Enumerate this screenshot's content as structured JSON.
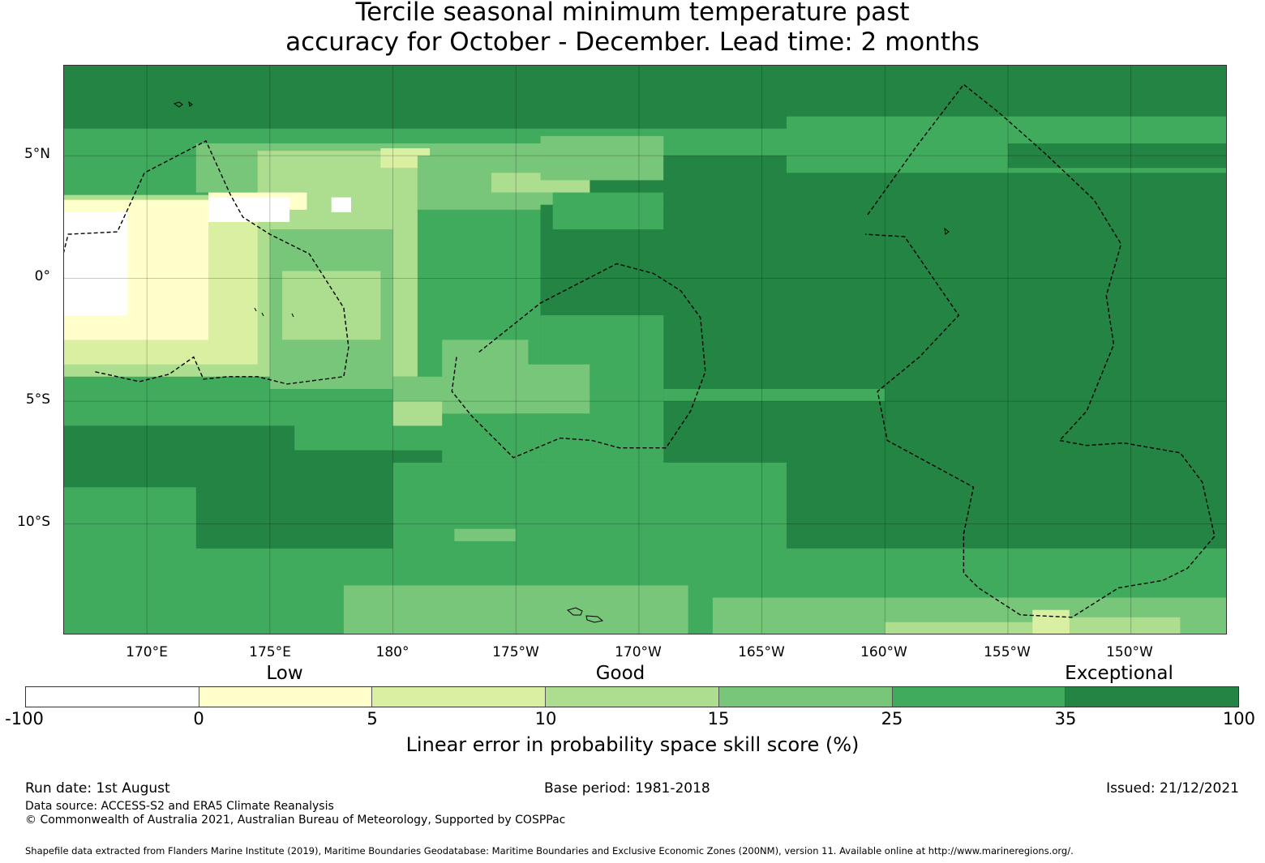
{
  "title": {
    "line1": "Tercile seasonal minimum temperature past",
    "line2": "accuracy for October - December. Lead time: 2 months"
  },
  "map": {
    "lat_labels": [
      "5°N",
      "0°",
      "5°S",
      "10°S"
    ],
    "lon_labels": [
      "170°E",
      "175°E",
      "180°",
      "175°W",
      "170°W",
      "165°W",
      "160°W",
      "155°W",
      "150°W"
    ],
    "extent": {
      "lon_min": 166.6,
      "lon_max": 213.9,
      "lat_min": -14.5,
      "lat_max": 8.7
    },
    "grid_lons": [
      170,
      175,
      180,
      185,
      190,
      195,
      200,
      205,
      210
    ],
    "grid_lats": [
      5,
      0,
      -5,
      -10
    ],
    "background_class": 6
  },
  "legend": {
    "headings": [
      "Low",
      "Good",
      "Exceptional"
    ],
    "ticks": [
      "-100",
      "0",
      "5",
      "10",
      "15",
      "25",
      "35",
      "100"
    ],
    "colors": [
      "#ffffff",
      "#ffffcc",
      "#d9f0a3",
      "#addd8e",
      "#78c679",
      "#41ab5d",
      "#238443"
    ],
    "label": "Linear error in probability space skill score (%)"
  },
  "footer": {
    "run_date": "Run date: 1st August",
    "base_period": "Base period: 1981-2018",
    "issued": "Issued: 21/12/2021",
    "data_source": "Data source: ACCESS-S2 and ERA5 Climate Reanalysis",
    "copyright": "© Commonwealth of Australia 2021, Australian Bureau of Meteorology, Supported by COSPPac",
    "shapefile": "Shapefile data extracted from Flanders Marine Institute (2019), Maritime Boundaries Geodatabase: Maritime Boundaries and Exclusive Economic Zones (200NM), version 11. Available online at http://www.marineregions.org/."
  },
  "skill_regions": [
    {
      "class": 5,
      "lon": [
        166.6,
        213.9
      ],
      "lat": [
        5.0,
        6.1
      ]
    },
    {
      "class": 5,
      "lon": [
        166.6,
        186.0
      ],
      "lat": [
        -7.0,
        5.0
      ]
    },
    {
      "class": 4,
      "lon": [
        172.0,
        186.5
      ],
      "lat": [
        3.5,
        5.5
      ]
    },
    {
      "class": 3,
      "lon": [
        174.5,
        181.0
      ],
      "lat": [
        3.3,
        5.2
      ]
    },
    {
      "class": 2,
      "lon": [
        179.5,
        181.5
      ],
      "lat": [
        4.5,
        5.3
      ]
    },
    {
      "class": 3,
      "lon": [
        166.6,
        181.0
      ],
      "lat": [
        -4.0,
        3.4
      ]
    },
    {
      "class": 2,
      "lon": [
        166.6,
        174.5
      ],
      "lat": [
        -3.5,
        3.2
      ]
    },
    {
      "class": 1,
      "lon": [
        166.6,
        172.5
      ],
      "lat": [
        -2.5,
        3.2
      ]
    },
    {
      "class": 1,
      "lon": [
        172.5,
        176.5
      ],
      "lat": [
        2.8,
        3.5
      ]
    },
    {
      "class": 0,
      "lon": [
        166.6,
        169.2
      ],
      "lat": [
        -1.5,
        2.7
      ]
    },
    {
      "class": 0,
      "lon": [
        172.5,
        175.8
      ],
      "lat": [
        2.3,
        3.3
      ]
    },
    {
      "class": 0,
      "lon": [
        177.5,
        178.3
      ],
      "lat": [
        2.7,
        3.3
      ]
    },
    {
      "class": 4,
      "lon": [
        175.0,
        180.0
      ],
      "lat": [
        -4.5,
        2.0
      ]
    },
    {
      "class": 3,
      "lon": [
        175.5,
        179.5
      ],
      "lat": [
        -2.5,
        0.3
      ]
    },
    {
      "class": 4,
      "lon": [
        181.0,
        188.0
      ],
      "lat": [
        2.8,
        5.0
      ]
    },
    {
      "class": 3,
      "lon": [
        184.0,
        188.0
      ],
      "lat": [
        3.5,
        4.3
      ]
    },
    {
      "class": 4,
      "lon": [
        186.0,
        191.0
      ],
      "lat": [
        4.0,
        5.8
      ]
    },
    {
      "class": 4,
      "lon": [
        180.0,
        189.0
      ],
      "lat": [
        -6.0,
        -4.0
      ]
    },
    {
      "class": 3,
      "lon": [
        180.0,
        185.0
      ],
      "lat": [
        -6.0,
        -5.0
      ]
    },
    {
      "class": 4,
      "lon": [
        182.0,
        185.5
      ],
      "lat": [
        -5.5,
        -2.5
      ]
    },
    {
      "class": 6,
      "lon": [
        186.0,
        213.9
      ],
      "lat": [
        -13.5,
        3.0
      ]
    },
    {
      "class": 6,
      "lon": [
        191.0,
        213.9
      ],
      "lat": [
        3.0,
        5.0
      ]
    },
    {
      "class": 5,
      "lon": [
        196.0,
        213.9
      ],
      "lat": [
        4.3,
        6.6
      ]
    },
    {
      "class": 6,
      "lon": [
        205.0,
        213.9
      ],
      "lat": [
        4.5,
        5.5
      ]
    },
    {
      "class": 5,
      "lon": [
        186.5,
        191.0
      ],
      "lat": [
        2.0,
        3.5
      ]
    },
    {
      "class": 5,
      "lon": [
        186.0,
        191.0
      ],
      "lat": [
        -7.5,
        -1.5
      ]
    },
    {
      "class": 4,
      "lon": [
        183.0,
        188.0
      ],
      "lat": [
        -5.5,
        -3.5
      ]
    },
    {
      "class": 5,
      "lon": [
        182.0,
        186.0
      ],
      "lat": [
        -7.5,
        -5.5
      ]
    },
    {
      "class": 5,
      "lon": [
        191.0,
        200.0
      ],
      "lat": [
        -5.0,
        -4.5
      ]
    },
    {
      "class": 5,
      "lon": [
        180.0,
        196.0
      ],
      "lat": [
        -11.0,
        -7.5
      ]
    },
    {
      "class": 4,
      "lon": [
        182.5,
        185.0
      ],
      "lat": [
        -10.7,
        -10.2
      ]
    },
    {
      "class": 5,
      "lon": [
        166.6,
        175.0
      ],
      "lat": [
        -11.0,
        -8.5
      ]
    },
    {
      "class": 6,
      "lon": [
        166.6,
        176.0
      ],
      "lat": [
        -8.5,
        -6.0
      ]
    },
    {
      "class": 6,
      "lon": [
        172.0,
        180.0
      ],
      "lat": [
        -12.0,
        -7.0
      ]
    },
    {
      "class": 5,
      "lon": [
        166.6,
        213.9
      ],
      "lat": [
        -14.5,
        -11.0
      ]
    },
    {
      "class": 5,
      "lon": [
        180.0,
        213.9
      ],
      "lat": [
        -13.0,
        -11.0
      ]
    },
    {
      "class": 4,
      "lon": [
        178.0,
        192.0
      ],
      "lat": [
        -14.5,
        -12.5
      ]
    },
    {
      "class": 4,
      "lon": [
        193.0,
        213.9
      ],
      "lat": [
        -14.5,
        -13.0
      ]
    },
    {
      "class": 3,
      "lon": [
        200.0,
        210.5
      ],
      "lat": [
        -14.5,
        -14.0
      ]
    },
    {
      "class": 3,
      "lon": [
        207.0,
        212.0
      ],
      "lat": [
        -14.5,
        -13.8
      ]
    },
    {
      "class": 2,
      "lon": [
        206.0,
        207.5
      ],
      "lat": [
        -14.5,
        -13.5
      ]
    },
    {
      "class": 6,
      "lon": [
        166.6,
        213.9
      ],
      "lat": [
        6.6,
        8.7
      ]
    }
  ],
  "eez_boundaries": [
    [
      [
        167.9,
        -3.8
      ],
      [
        169.7,
        -4.2
      ],
      [
        170.9,
        -3.9
      ],
      [
        171.9,
        -3.2
      ],
      [
        172.3,
        -4.1
      ],
      [
        173.3,
        -4.0
      ],
      [
        174.5,
        -4.0
      ],
      [
        175.7,
        -4.3
      ],
      [
        178.0,
        -4.0
      ],
      [
        178.2,
        -2.8
      ],
      [
        178.0,
        -1.2
      ],
      [
        176.6,
        1.0
      ],
      [
        175.0,
        1.8
      ],
      [
        173.9,
        2.5
      ],
      [
        173.4,
        3.4
      ],
      [
        172.4,
        5.6
      ],
      [
        169.9,
        4.3
      ],
      [
        168.8,
        1.9
      ],
      [
        166.8,
        1.8
      ],
      [
        166.5,
        0.6
      ]
    ],
    [
      [
        183.5,
        -3.0
      ],
      [
        186.0,
        -1.0
      ],
      [
        189.1,
        0.6
      ],
      [
        190.6,
        0.2
      ],
      [
        191.7,
        -0.5
      ],
      [
        192.5,
        -1.6
      ],
      [
        192.7,
        -3.8
      ],
      [
        192.1,
        -5.4
      ],
      [
        191.1,
        -6.9
      ],
      [
        189.2,
        -6.9
      ],
      [
        188.1,
        -6.6
      ],
      [
        186.8,
        -6.5
      ],
      [
        184.9,
        -7.3
      ],
      [
        183.2,
        -5.6
      ],
      [
        182.4,
        -4.6
      ],
      [
        182.6,
        -3.1
      ]
    ],
    [
      [
        199.3,
        2.6
      ],
      [
        201.3,
        5.4
      ],
      [
        203.2,
        7.9
      ],
      [
        204.7,
        6.7
      ],
      [
        206.5,
        5.1
      ],
      [
        208.5,
        3.2
      ],
      [
        209.6,
        1.4
      ],
      [
        209.0,
        -0.7
      ],
      [
        209.3,
        -2.7
      ],
      [
        208.2,
        -5.4
      ],
      [
        207.1,
        -6.6
      ],
      [
        208.2,
        -6.8
      ],
      [
        209.7,
        -6.7
      ],
      [
        212.0,
        -7.1
      ],
      [
        212.9,
        -8.3
      ],
      [
        213.4,
        -10.5
      ],
      [
        212.3,
        -11.8
      ],
      [
        211.3,
        -12.3
      ],
      [
        209.5,
        -12.6
      ],
      [
        207.6,
        -13.8
      ],
      [
        205.5,
        -13.7
      ],
      [
        203.8,
        -12.6
      ],
      [
        203.2,
        -12.0
      ],
      [
        203.2,
        -10.4
      ],
      [
        203.6,
        -8.5
      ],
      [
        200.1,
        -6.6
      ],
      [
        199.7,
        -4.6
      ],
      [
        201.4,
        -3.2
      ],
      [
        203.0,
        -1.5
      ],
      [
        200.8,
        1.7
      ],
      [
        199.2,
        1.8
      ]
    ]
  ]
}
